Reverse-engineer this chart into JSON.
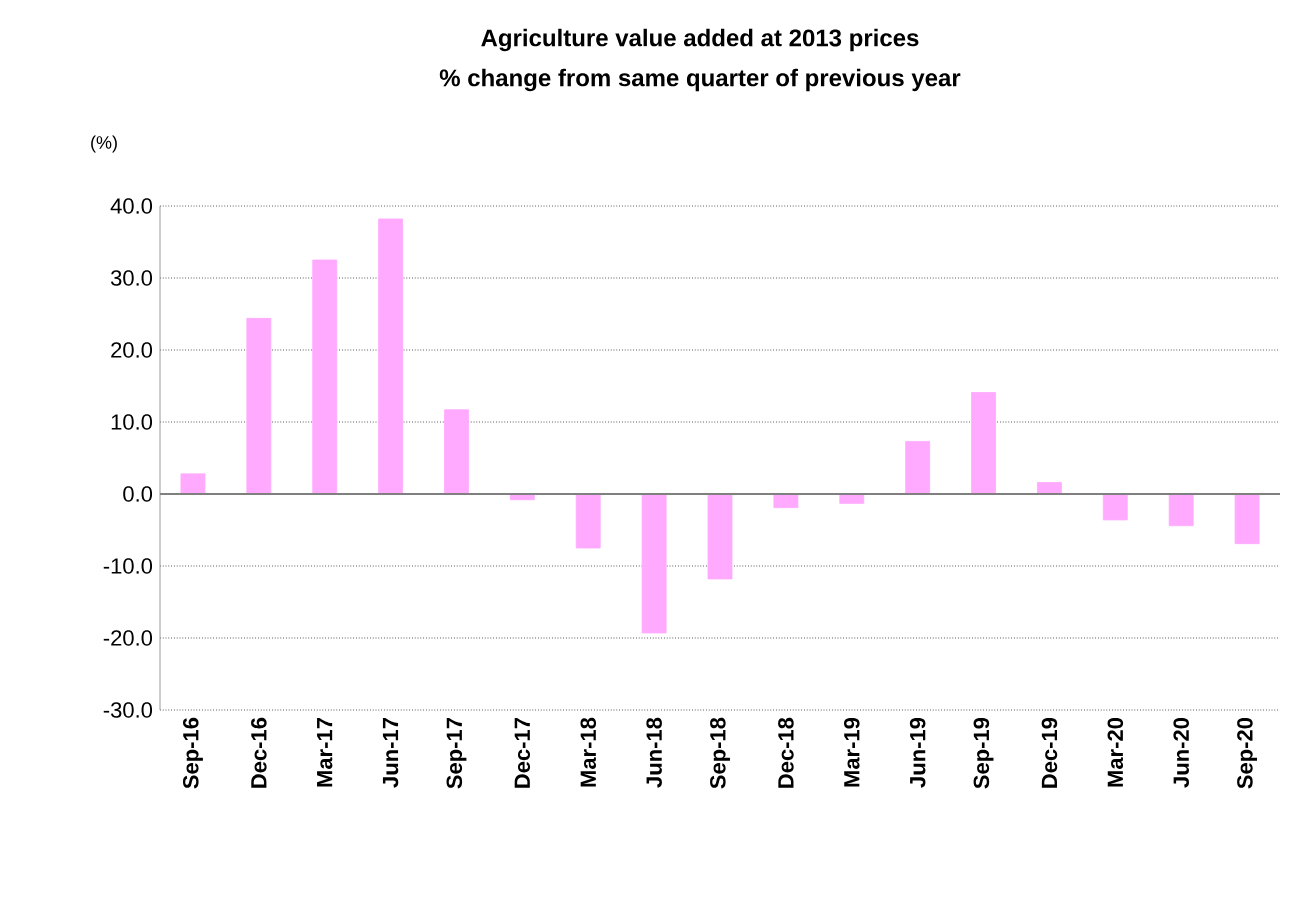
{
  "chart_data": {
    "type": "bar",
    "title": "Agriculture value added at 2013 prices",
    "subtitle": "% change from same quarter of previous year",
    "ylabel": "(%)",
    "categories": [
      "Sep-16",
      "Dec-16",
      "Mar-17",
      "Jun-17",
      "Sep-17",
      "Dec-17",
      "Mar-18",
      "Jun-18",
      "Sep-18",
      "Dec-18",
      "Mar-19",
      "Jun-19",
      "Sep-19",
      "Dec-19",
      "Mar-20",
      "Jun-20",
      "Sep-20"
    ],
    "values": [
      2.8,
      24.4,
      32.5,
      38.2,
      11.7,
      -0.8,
      -7.5,
      -19.3,
      -11.8,
      -1.9,
      -1.3,
      7.3,
      14.1,
      1.6,
      -3.6,
      -4.4,
      -6.9
    ],
    "color": "#ffaaff",
    "ylim": [
      -30,
      40
    ],
    "yticks": [
      {
        "value": -30,
        "label": "-30.0"
      },
      {
        "value": -20,
        "label": "-20.0"
      },
      {
        "value": -10,
        "label": "-10.0"
      },
      {
        "value": 0,
        "label": "0.0"
      },
      {
        "value": 10,
        "label": "10.0"
      },
      {
        "value": 20,
        "label": "20.0"
      },
      {
        "value": 30,
        "label": "30.0"
      },
      {
        "value": 40,
        "label": "40.0"
      }
    ],
    "grid": "y"
  }
}
